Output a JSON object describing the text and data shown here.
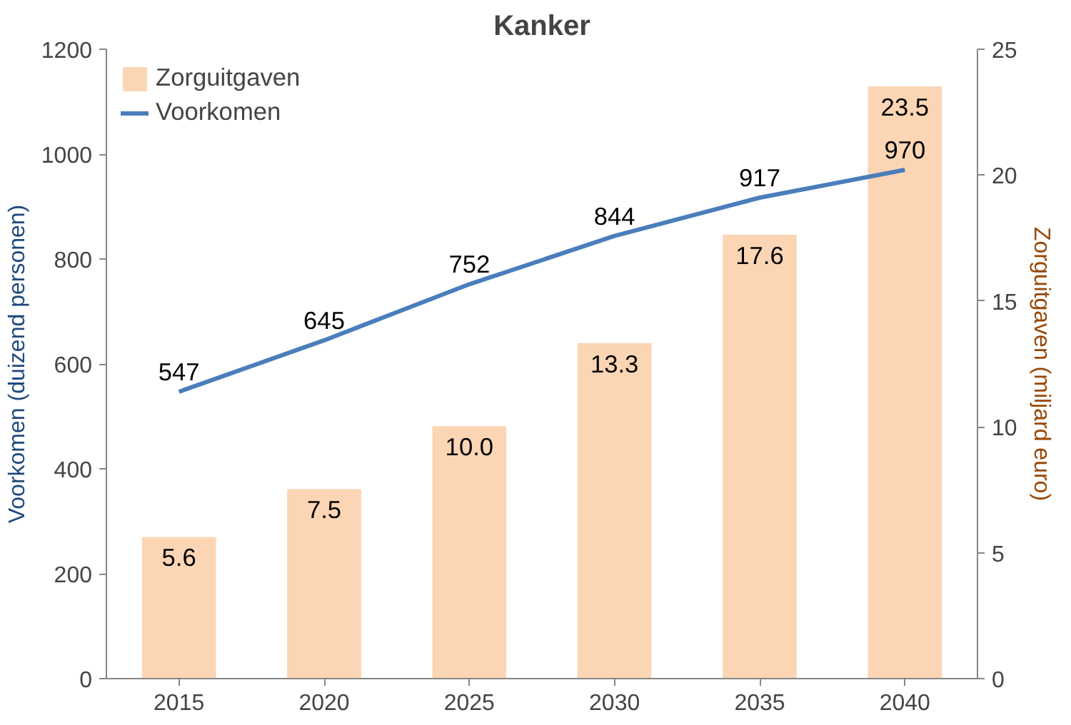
{
  "chart_data": {
    "type": "bar",
    "title": "Kanker",
    "categories": [
      "2015",
      "2020",
      "2025",
      "2030",
      "2035",
      "2040"
    ],
    "ylabel": "Voorkomen (duizend personen)",
    "y2label": "Zorguitgaven (miljard euro)",
    "ylim": [
      0,
      1200
    ],
    "yticks": [
      0,
      200,
      400,
      600,
      800,
      1000,
      1200
    ],
    "y2lim": [
      0,
      25
    ],
    "y2ticks": [
      0,
      5,
      10,
      15,
      20,
      25
    ],
    "series": [
      {
        "name": "Zorguitgaven",
        "axis": "y2",
        "color": "#fcd5b4",
        "values": [
          5.6,
          7.5,
          10.0,
          13.3,
          17.6,
          23.5
        ],
        "value_labels": [
          "5.6",
          "7.5",
          "10.0",
          "13.3",
          "17.6",
          "23.5"
        ]
      },
      {
        "name": "Voorkomen",
        "type": "line",
        "axis": "y",
        "color": "#4a7ebb",
        "values": [
          547,
          645,
          752,
          844,
          917,
          970
        ],
        "value_labels": [
          "547",
          "645",
          "752",
          "844",
          "917",
          "970"
        ]
      }
    ],
    "legend": "top left",
    "grid": false
  }
}
